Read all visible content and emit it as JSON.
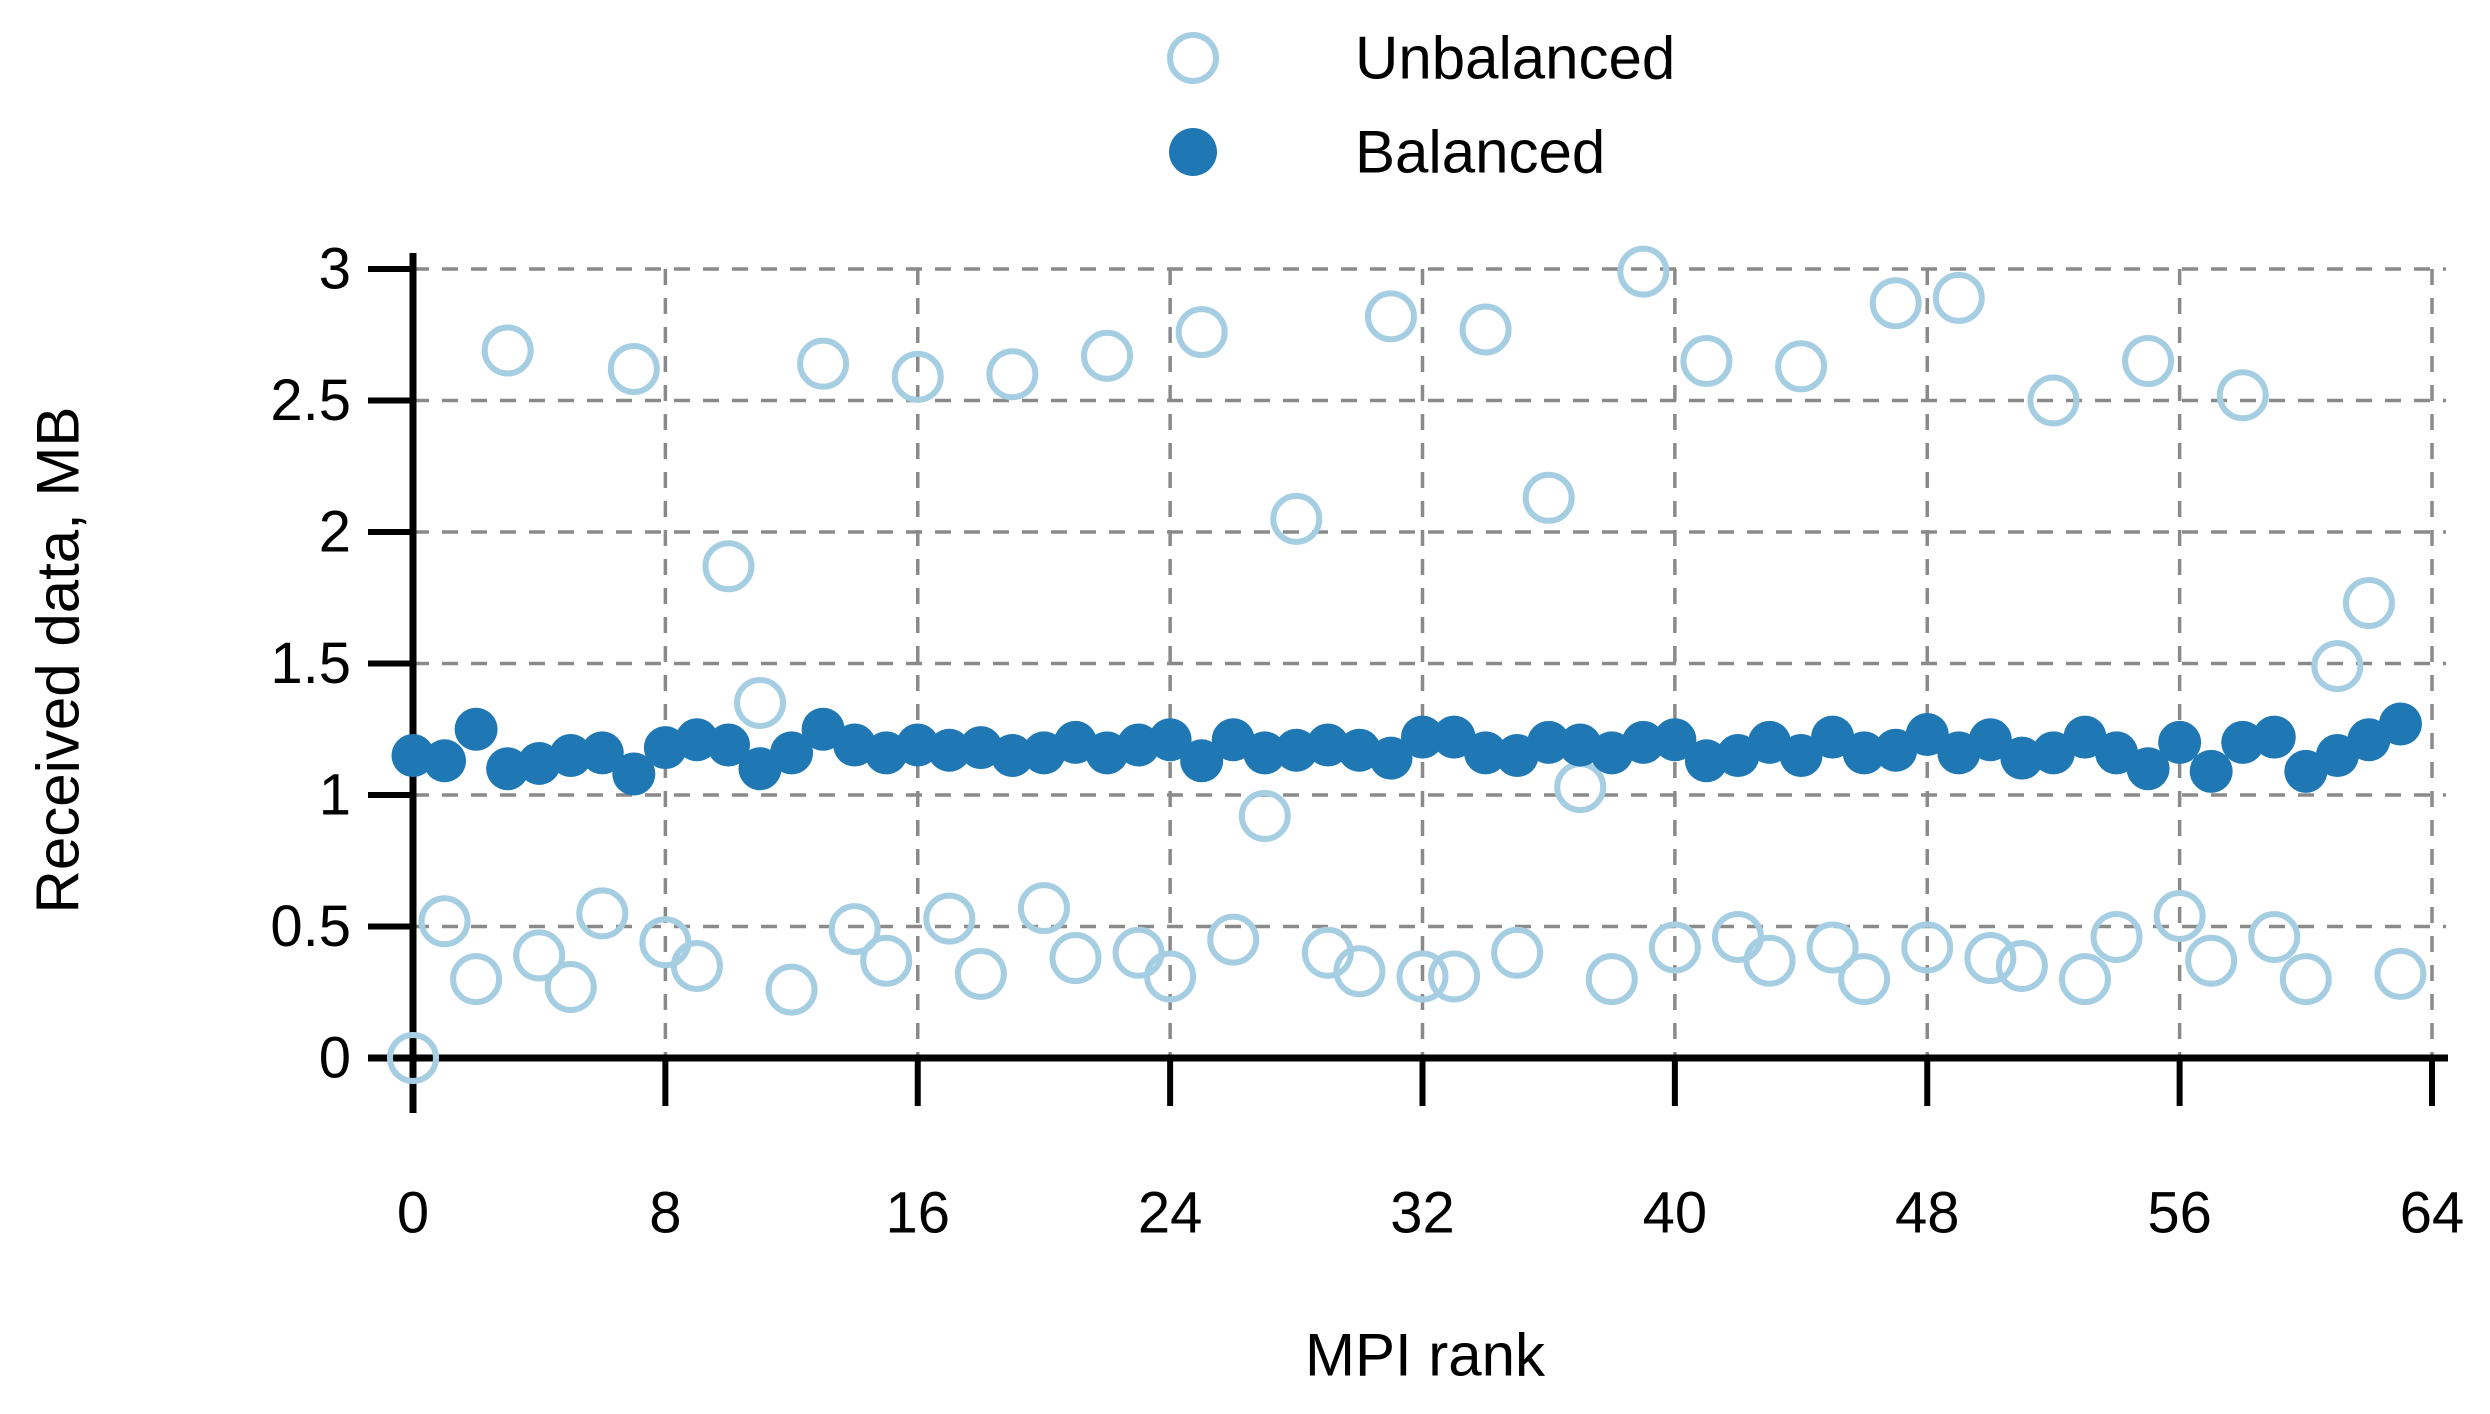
{
  "chart_data": {
    "type": "scatter",
    "title": "",
    "xlabel": "MPI rank",
    "ylabel": "Received data, MB",
    "xlim": [
      0,
      64
    ],
    "ylim": [
      0,
      3
    ],
    "x_ticks": [
      0,
      8,
      16,
      24,
      32,
      40,
      48,
      56,
      64
    ],
    "y_ticks": [
      0,
      0.5,
      1,
      1.5,
      2,
      2.5,
      3
    ],
    "y_tick_labels": [
      "0",
      "0.5",
      "1",
      "1.5",
      "2",
      "2.5",
      "3"
    ],
    "grid": "dashed gray, horizontal at each y tick except 0, vertical at each x tick except 0",
    "legend_position": "top-center",
    "ranks": [
      0,
      1,
      2,
      3,
      4,
      5,
      6,
      7,
      8,
      9,
      10,
      11,
      12,
      13,
      14,
      15,
      16,
      17,
      18,
      19,
      20,
      21,
      22,
      23,
      24,
      25,
      26,
      27,
      28,
      29,
      30,
      31,
      32,
      33,
      34,
      35,
      36,
      37,
      38,
      39,
      40,
      41,
      42,
      43,
      44,
      45,
      46,
      47,
      48,
      49,
      50,
      51,
      52,
      53,
      54,
      55,
      56,
      57,
      58,
      59,
      60,
      61,
      62,
      63
    ],
    "series": [
      {
        "name": "Unbalanced",
        "marker": "open-circle",
        "color": "#a6cee3",
        "values": [
          0.0,
          0.52,
          0.3,
          2.69,
          0.39,
          0.27,
          0.55,
          2.62,
          0.44,
          0.35,
          1.87,
          1.35,
          0.26,
          2.64,
          0.49,
          0.37,
          2.59,
          0.53,
          0.32,
          2.6,
          0.57,
          0.38,
          2.67,
          0.4,
          0.31,
          2.76,
          0.45,
          0.92,
          2.05,
          0.4,
          0.33,
          2.82,
          0.31,
          0.31,
          2.77,
          0.4,
          2.13,
          1.03,
          0.3,
          2.99,
          0.42,
          2.65,
          0.46,
          0.37,
          2.63,
          0.42,
          0.3,
          2.87,
          0.42,
          2.89,
          0.38,
          0.35,
          2.5,
          0.3,
          0.46,
          2.65,
          0.54,
          0.37,
          2.52,
          0.46,
          0.3,
          1.49,
          1.73,
          0.32
        ]
      },
      {
        "name": "Balanced",
        "marker": "filled-circle",
        "color": "#1f78b4",
        "values": [
          1.15,
          1.13,
          1.25,
          1.1,
          1.12,
          1.15,
          1.16,
          1.08,
          1.18,
          1.21,
          1.19,
          1.1,
          1.16,
          1.25,
          1.19,
          1.16,
          1.19,
          1.17,
          1.18,
          1.15,
          1.16,
          1.2,
          1.16,
          1.19,
          1.21,
          1.13,
          1.21,
          1.16,
          1.17,
          1.19,
          1.17,
          1.14,
          1.22,
          1.22,
          1.16,
          1.15,
          1.2,
          1.19,
          1.16,
          1.2,
          1.21,
          1.13,
          1.15,
          1.2,
          1.15,
          1.22,
          1.16,
          1.17,
          1.23,
          1.16,
          1.21,
          1.14,
          1.16,
          1.22,
          1.16,
          1.1,
          1.2,
          1.09,
          1.2,
          1.22,
          1.09,
          1.15,
          1.21,
          1.27
        ]
      }
    ]
  },
  "colors": {
    "background": "#ffffff",
    "axis": "#000000",
    "gridline": "#8a8a8a",
    "text": "#000000",
    "unbalanced": "#a6cee3",
    "balanced": "#1f78b4"
  }
}
